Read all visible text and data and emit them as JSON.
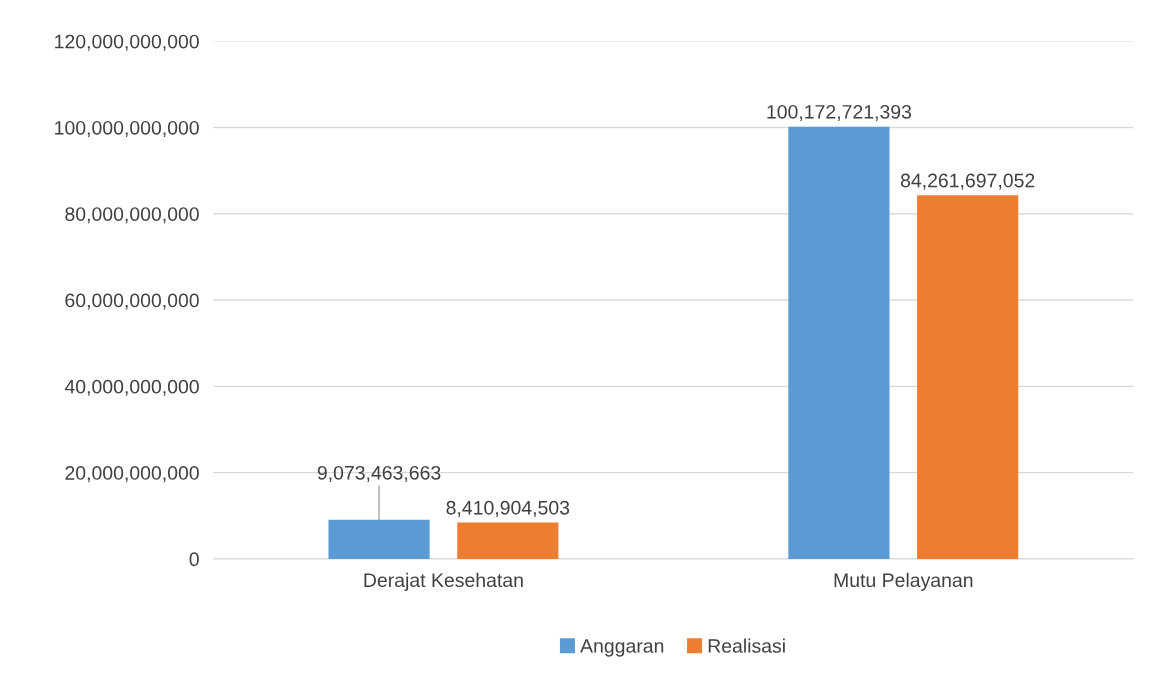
{
  "chart_data": {
    "type": "bar",
    "categories": [
      "Derajat Kesehatan",
      "Mutu Pelayanan"
    ],
    "series": [
      {
        "name": "Anggaran",
        "color": "#5b9bd5",
        "values": [
          9073463663,
          100172721393
        ],
        "value_labels": [
          "9,073,463,663",
          "100,172,721,393"
        ]
      },
      {
        "name": "Realisasi",
        "color": "#ed7d31",
        "values": [
          8410904503,
          84261697052
        ],
        "value_labels": [
          "8,410,904,503",
          "84,261,697,052"
        ]
      }
    ],
    "ylim": [
      0,
      120000000000
    ],
    "yticks": [
      0,
      {
        "value": 20000000000,
        "label": "20,000,000,000"
      },
      {
        "value": 40000000000,
        "label": "40,000,000,000"
      },
      {
        "value": 60000000000,
        "label": "60,000,000,000"
      },
      {
        "value": 80000000000,
        "label": "80,000,000,000"
      },
      {
        "value": 100000000000,
        "label": "100,000,000,000"
      },
      {
        "value": 120000000000,
        "label": "120,000,000,000"
      }
    ],
    "grid": "y",
    "legend": "bottom"
  }
}
